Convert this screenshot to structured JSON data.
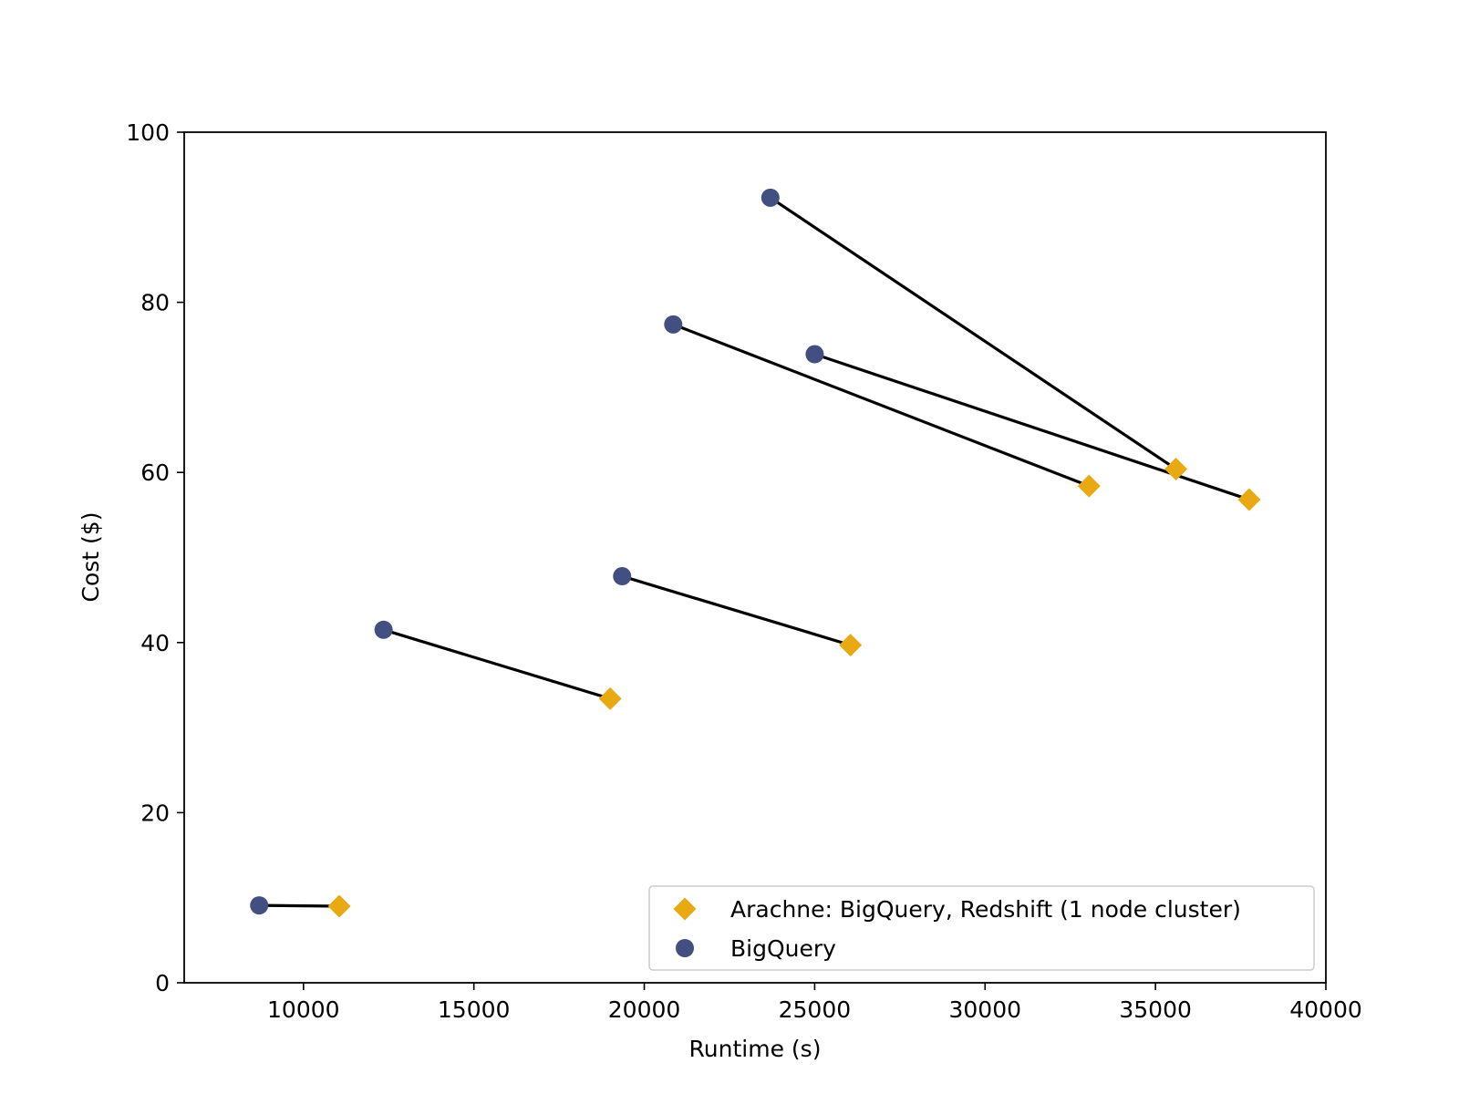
{
  "chart_data": {
    "type": "scatter",
    "title": "",
    "xlabel": "Runtime (s)",
    "ylabel": "Cost ($)",
    "xlim": [
      6500,
      40000
    ],
    "ylim": [
      0,
      100
    ],
    "xticks": [
      10000,
      15000,
      20000,
      25000,
      30000,
      35000,
      40000
    ],
    "yticks": [
      0,
      20,
      40,
      60,
      80,
      100
    ],
    "grid": false,
    "legend_position": "lower right",
    "series": [
      {
        "name": "Arachne: BigQuery, Redshift (1 node cluster)",
        "marker": "diamond",
        "color": "#E8A912",
        "points": [
          {
            "x": 11050,
            "y": 9.0
          },
          {
            "x": 19000,
            "y": 33.4
          },
          {
            "x": 26050,
            "y": 39.7
          },
          {
            "x": 33050,
            "y": 58.4
          },
          {
            "x": 35600,
            "y": 60.4
          },
          {
            "x": 37750,
            "y": 56.8
          }
        ]
      },
      {
        "name": "BigQuery",
        "marker": "circle",
        "color": "#415080",
        "points": [
          {
            "x": 8700,
            "y": 9.1
          },
          {
            "x": 12350,
            "y": 41.5
          },
          {
            "x": 19350,
            "y": 47.8
          },
          {
            "x": 20850,
            "y": 77.4
          },
          {
            "x": 23700,
            "y": 92.3
          },
          {
            "x": 25000,
            "y": 73.9
          }
        ]
      }
    ],
    "connections": [
      {
        "from": {
          "x": 8700,
          "y": 9.1
        },
        "to": {
          "x": 11050,
          "y": 9.0
        }
      },
      {
        "from": {
          "x": 12350,
          "y": 41.5
        },
        "to": {
          "x": 19000,
          "y": 33.4
        }
      },
      {
        "from": {
          "x": 19350,
          "y": 47.8
        },
        "to": {
          "x": 26050,
          "y": 39.7
        }
      },
      {
        "from": {
          "x": 20850,
          "y": 77.4
        },
        "to": {
          "x": 33050,
          "y": 58.4
        }
      },
      {
        "from": {
          "x": 23700,
          "y": 92.3
        },
        "to": {
          "x": 35600,
          "y": 60.4
        }
      },
      {
        "from": {
          "x": 25000,
          "y": 73.9
        },
        "to": {
          "x": 37750,
          "y": 56.8
        }
      }
    ],
    "connection_color": "#000000"
  }
}
